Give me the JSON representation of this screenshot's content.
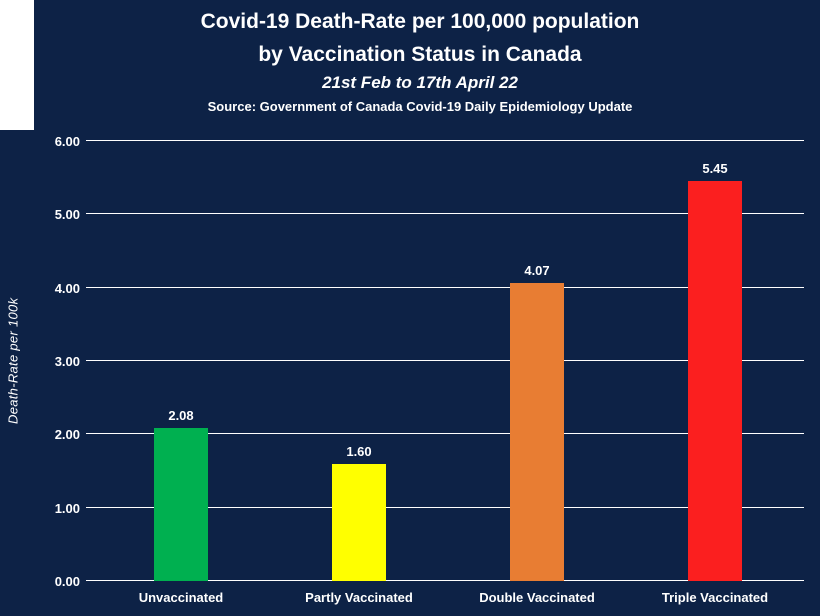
{
  "header": {
    "title_line1": "Covid-19 Death-Rate per 100,000 population",
    "title_line2": "by Vaccination Status in Canada",
    "subtitle": "21st Feb to 17th April 22",
    "source": "Source: Government of Canada Covid-19 Daily Epidemiology Update"
  },
  "chart_data": {
    "type": "bar",
    "title": "Covid-19 Death-Rate per 100,000 population by Vaccination Status in Canada",
    "subtitle": "21st Feb to 17th April 22",
    "source": "Source: Government of Canada Covid-19 Daily Epidemiology Update",
    "categories": [
      "Unvaccinated",
      "Partly Vaccinated",
      "Double Vaccinated",
      "Triple Vaccinated"
    ],
    "values": [
      2.08,
      1.6,
      4.07,
      5.45
    ],
    "value_labels": [
      "2.08",
      "1.60",
      "4.07",
      "5.45"
    ],
    "bar_colors": [
      "#00b050",
      "#ffff00",
      "#e87d33",
      "#fb1f1f"
    ],
    "xlabel": "",
    "ylabel": "Death-Rate per 100k",
    "ylim": [
      0,
      6
    ],
    "ytick_step": 1,
    "ytick_labels": [
      "0.00",
      "1.00",
      "2.00",
      "3.00",
      "4.00",
      "5.00",
      "6.00"
    ],
    "grid": true,
    "legend": false,
    "background_color": "#0d2246",
    "text_color": "#ffffff"
  }
}
